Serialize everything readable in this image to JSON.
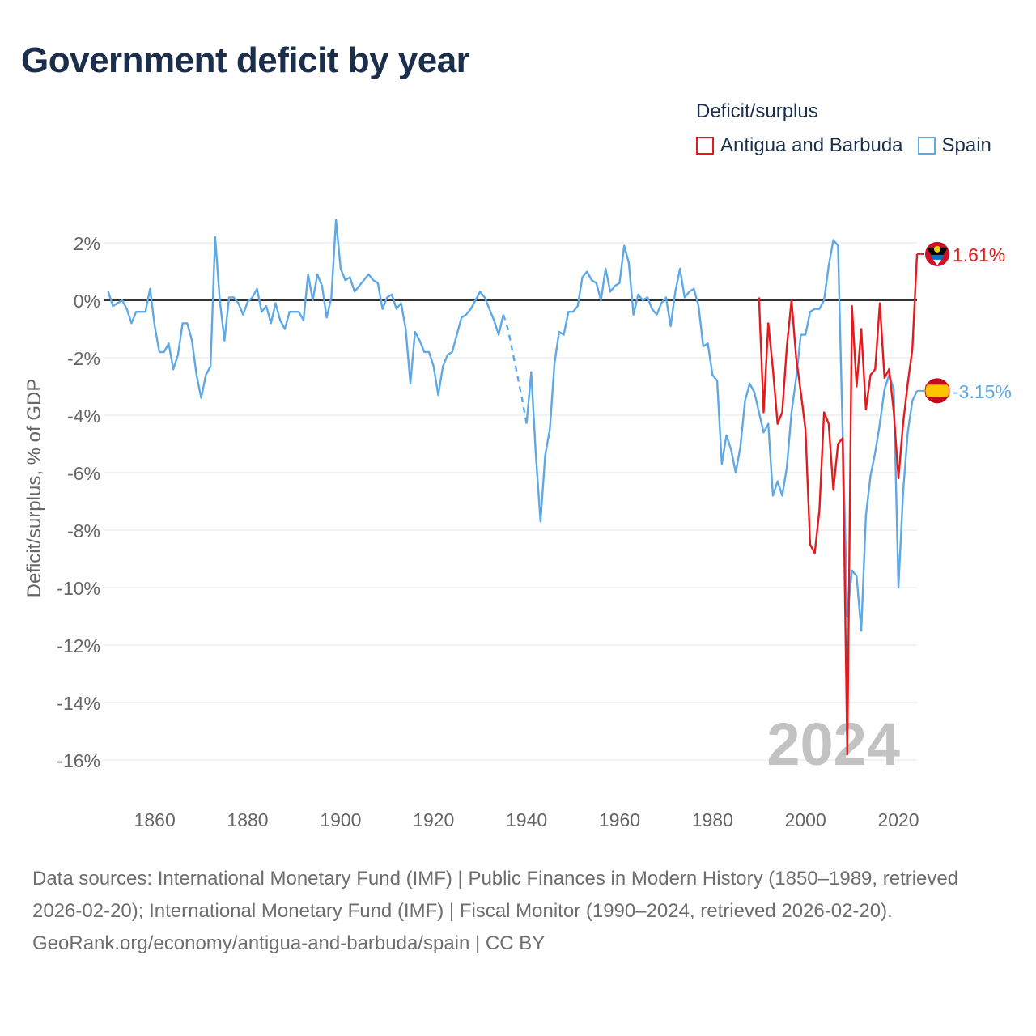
{
  "chart_data": {
    "type": "line",
    "title": "Government deficit by year",
    "xlabel": "",
    "ylabel": "Deficit/surplus, % of GDP",
    "xlim": [
      1849,
      2024
    ],
    "ylim": [
      -17,
      3
    ],
    "x_ticks": [
      1860,
      1880,
      1900,
      1920,
      1940,
      1960,
      1980,
      2000,
      2020
    ],
    "x_tick_labels": [
      "1860",
      "1880",
      "1900",
      "1920",
      "1940",
      "1960",
      "1980",
      "2000",
      "2020"
    ],
    "y_ticks": [
      2,
      0,
      -2,
      -4,
      -6,
      -8,
      -10,
      -12,
      -14,
      -16
    ],
    "y_tick_labels": [
      "2%",
      "0%",
      "-2%",
      "-4%",
      "-6%",
      "-8%",
      "-10%",
      "-12%",
      "-14%",
      "-16%"
    ],
    "grid": true,
    "legend_title": "Deficit/surplus",
    "legend_position": "top-right",
    "year_watermark": "2024",
    "series": [
      {
        "name": "Antigua and Barbuda",
        "color": "#e41a1c",
        "end_label": "1.61%",
        "x": [
          1990,
          1991,
          1992,
          1993,
          1994,
          1995,
          1996,
          1997,
          1998,
          1999,
          2000,
          2001,
          2002,
          2003,
          2004,
          2005,
          2006,
          2007,
          2008,
          2009,
          2010,
          2011,
          2012,
          2013,
          2014,
          2015,
          2016,
          2017,
          2018,
          2019,
          2020,
          2021,
          2022,
          2023,
          2024
        ],
        "values": [
          0.1,
          -3.9,
          -0.8,
          -2.4,
          -4.3,
          -3.9,
          -1.6,
          0.0,
          -2.0,
          -3.2,
          -4.5,
          -8.5,
          -8.8,
          -7.3,
          -3.9,
          -4.3,
          -6.6,
          -5.0,
          -4.8,
          -15.8,
          -0.2,
          -3.0,
          -1.0,
          -3.8,
          -2.6,
          -2.4,
          -0.1,
          -2.7,
          -2.4,
          -3.9,
          -6.2,
          -4.3,
          -2.9,
          -1.7,
          1.61
        ]
      },
      {
        "name": "Spain",
        "color": "#5fa8e6",
        "end_label": "-3.15%",
        "x": [
          1850,
          1851,
          1852,
          1853,
          1854,
          1855,
          1856,
          1857,
          1858,
          1859,
          1860,
          1861,
          1862,
          1863,
          1864,
          1865,
          1866,
          1867,
          1868,
          1869,
          1870,
          1871,
          1872,
          1873,
          1874,
          1875,
          1876,
          1877,
          1878,
          1879,
          1880,
          1881,
          1882,
          1883,
          1884,
          1885,
          1886,
          1887,
          1888,
          1889,
          1890,
          1891,
          1892,
          1893,
          1894,
          1895,
          1896,
          1897,
          1898,
          1899,
          1900,
          1901,
          1902,
          1903,
          1904,
          1905,
          1906,
          1907,
          1908,
          1909,
          1910,
          1911,
          1912,
          1913,
          1914,
          1915,
          1916,
          1917,
          1918,
          1919,
          1920,
          1921,
          1922,
          1923,
          1924,
          1925,
          1926,
          1927,
          1928,
          1929,
          1930,
          1931,
          1932,
          1933,
          1934,
          1935,
          1936,
          1937,
          1938,
          1939,
          1940,
          1941,
          1942,
          1943,
          1944,
          1945,
          1946,
          1947,
          1948,
          1949,
          1950,
          1951,
          1952,
          1953,
          1954,
          1955,
          1956,
          1957,
          1958,
          1959,
          1960,
          1961,
          1962,
          1963,
          1964,
          1965,
          1966,
          1967,
          1968,
          1969,
          1970,
          1971,
          1972,
          1973,
          1974,
          1975,
          1976,
          1977,
          1978,
          1979,
          1980,
          1981,
          1982,
          1983,
          1984,
          1985,
          1986,
          1987,
          1988,
          1989,
          1990,
          1991,
          1992,
          1993,
          1994,
          1995,
          1996,
          1997,
          1998,
          1999,
          2000,
          2001,
          2002,
          2003,
          2004,
          2005,
          2006,
          2007,
          2008,
          2009,
          2010,
          2011,
          2012,
          2013,
          2014,
          2015,
          2016,
          2017,
          2018,
          2019,
          2020,
          2021,
          2022,
          2023,
          2024
        ],
        "values": [
          0.3,
          -0.2,
          -0.1,
          0.0,
          -0.3,
          -0.8,
          -0.4,
          -0.4,
          -0.4,
          0.4,
          -0.9,
          -1.8,
          -1.8,
          -1.5,
          -2.4,
          -1.9,
          -0.8,
          -0.8,
          -1.4,
          -2.6,
          -3.4,
          -2.6,
          -2.3,
          2.2,
          0.0,
          -1.4,
          0.1,
          0.1,
          -0.1,
          -0.5,
          -0.05,
          0.1,
          0.4,
          -0.4,
          -0.2,
          -0.8,
          -0.1,
          -0.7,
          -1.0,
          -0.4,
          -0.4,
          -0.4,
          -0.7,
          0.9,
          0.0,
          0.9,
          0.5,
          -0.6,
          0.1,
          2.8,
          1.1,
          0.7,
          0.8,
          0.3,
          0.5,
          0.7,
          0.9,
          0.7,
          0.6,
          -0.3,
          0.1,
          0.2,
          -0.3,
          -0.1,
          -1.0,
          -2.9,
          -1.1,
          -1.4,
          -1.8,
          -1.8,
          -2.3,
          -3.3,
          -2.3,
          -1.9,
          -1.8,
          -1.2,
          -0.6,
          -0.5,
          -0.3,
          -0.0,
          0.3,
          0.1,
          -0.3,
          -0.7,
          -1.2,
          -0.5,
          -1.0,
          -1.8,
          -2.6,
          -3.4,
          -4.3,
          -2.5,
          -5.4,
          -7.7,
          -5.4,
          -4.5,
          -2.2,
          -1.1,
          -1.2,
          -0.4,
          -0.4,
          -0.2,
          0.8,
          1.0,
          0.7,
          0.6,
          0.0,
          1.1,
          0.3,
          0.5,
          0.6,
          1.9,
          1.3,
          -0.5,
          0.2,
          0.0,
          0.1,
          -0.3,
          -0.5,
          -0.1,
          0.1,
          -0.9,
          0.3,
          1.1,
          0.1,
          0.3,
          0.4,
          -0.2,
          -1.6,
          -1.5,
          -2.6,
          -2.8,
          -5.7,
          -4.7,
          -5.2,
          -6.0,
          -5.1,
          -3.5,
          -2.9,
          -3.2,
          -3.9,
          -4.6,
          -4.3,
          -6.8,
          -6.3,
          -6.8,
          -5.8,
          -3.9,
          -2.7,
          -1.2,
          -1.2,
          -0.4,
          -0.3,
          -0.3,
          0.0,
          1.2,
          2.1,
          1.9,
          -4.6,
          -11.0,
          -9.4,
          -9.6,
          -11.5,
          -7.5,
          -6.1,
          -5.3,
          -4.3,
          -3.1,
          -2.6,
          -3.1,
          -10.0,
          -6.7,
          -4.6,
          -3.5,
          -3.15
        ]
      }
    ]
  },
  "footer": {
    "sources": "Data sources: International Monetary Fund (IMF) | Public Finances in Modern History (1850–1989, retrieved 2026-02-20); International Monetary Fund (IMF) | Fiscal Monitor (1990–2024, retrieved 2026-02-20).",
    "credit": "GeoRank.org/economy/antigua-and-barbuda/spain | CC BY"
  }
}
